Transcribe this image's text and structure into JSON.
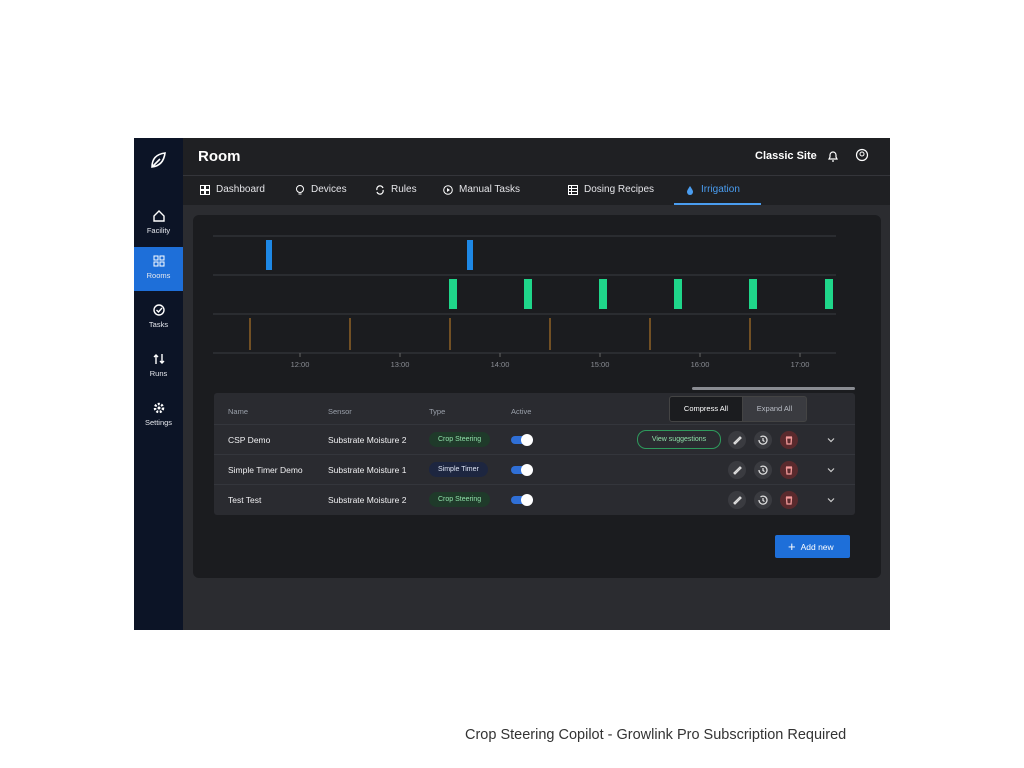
{
  "header": {
    "title": "Room",
    "site": "Classic Site"
  },
  "sidebar": {
    "items": [
      "Facility",
      "Rooms",
      "Tasks",
      "Runs",
      "Settings"
    ]
  },
  "tabs": [
    "Dashboard",
    "Devices",
    "Rules",
    "Manual Tasks",
    "Dosing Recipes",
    "Irrigation"
  ],
  "timeline": {
    "xlim": [
      11.13,
      17.36
    ],
    "xticks": [
      {
        "value": 12,
        "label": "12:00"
      },
      {
        "value": 13,
        "label": "13:00"
      },
      {
        "value": 14,
        "label": "14:00"
      },
      {
        "value": 15,
        "label": "15:00"
      },
      {
        "value": 16,
        "label": "16:00"
      },
      {
        "value": 17,
        "label": "17:00"
      }
    ],
    "lanes": [
      {
        "color": "#1e88e5",
        "events": [
          11.69,
          13.7
        ]
      },
      {
        "color": "#1fd68a",
        "events": [
          13.53,
          14.28,
          15.03,
          15.78,
          16.53,
          17.29
        ]
      },
      {
        "color": "#c8852a",
        "events": [
          11.5,
          12.5,
          13.5,
          14.5,
          15.5,
          16.5
        ]
      }
    ]
  },
  "table": {
    "columns": [
      "Name",
      "Sensor",
      "Type",
      "Active"
    ],
    "buttons": [
      "Compress All",
      "Expand All"
    ],
    "rows": [
      {
        "name": "CSP Demo",
        "sensor": "Substrate Moisture 2",
        "type": "Crop Steering",
        "active": true,
        "action": "View suggestions"
      },
      {
        "name": "Simple Timer Demo",
        "sensor": "Substrate Moisture 1",
        "type": "Simple Timer",
        "active": true
      },
      {
        "name": "Test Test",
        "sensor": "Substrate Moisture 2",
        "type": "Crop Steering",
        "active": true
      }
    ]
  },
  "add_button": "Add new",
  "caption": "Crop Steering Copilot - Growlink Pro Subscription Required"
}
